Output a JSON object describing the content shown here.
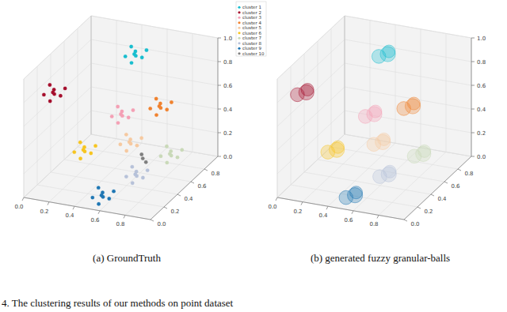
{
  "caption": "4. The clustering results of our methods on point dataset",
  "chart_data": [
    {
      "type": "scatter3d",
      "caption": "(a) GroundTruth",
      "legend": "upper right",
      "grid": true,
      "xlim": [
        0,
        1
      ],
      "ylim": [
        0,
        1
      ],
      "zlim": [
        0,
        1
      ],
      "xticks": [
        {
          "value": 0,
          "label": "0.0"
        },
        0.2,
        0.4,
        0.6,
        0.8
      ],
      "yticks": [
        {
          "value": 0,
          "label": "0.0"
        },
        0.2,
        0.4,
        0.6,
        0.8
      ],
      "zticks": [
        {
          "value": 0,
          "label": "0.0"
        },
        0.2,
        0.4,
        0.6,
        0.8,
        {
          "value": 1,
          "label": "1.0"
        }
      ],
      "series": [
        {
          "name": "cluster 1",
          "color": "#17becf",
          "x": [
            0.5,
            0.55,
            0.46,
            0.53,
            0.44,
            0.57,
            0.48,
            0.51
          ],
          "y": [
            0.7,
            0.72,
            0.73,
            0.66,
            0.68,
            0.75,
            0.76,
            0.64
          ],
          "z": [
            0.93,
            0.9,
            0.97,
            0.98,
            0.91,
            0.95,
            0.88,
            0.89
          ]
        },
        {
          "name": "cluster 2",
          "color": "#a50f2d",
          "x": [
            0.07,
            0.12,
            0.03,
            0.1,
            0.01,
            0.14,
            0.05,
            0.08
          ],
          "y": [
            0.3,
            0.32,
            0.33,
            0.26,
            0.28,
            0.35,
            0.36,
            0.24
          ],
          "z": [
            0.74,
            0.71,
            0.78,
            0.79,
            0.72,
            0.76,
            0.69,
            0.7
          ]
        },
        {
          "name": "cluster 3",
          "color": "#f4a0b5",
          "x": [
            0.5,
            0.55,
            0.46,
            0.53,
            0.44,
            0.57,
            0.48,
            0.51
          ],
          "y": [
            0.5,
            0.52,
            0.53,
            0.46,
            0.48,
            0.55,
            0.56,
            0.44
          ],
          "z": [
            0.53,
            0.5,
            0.57,
            0.58,
            0.51,
            0.55,
            0.48,
            0.49
          ]
        },
        {
          "name": "cluster 4",
          "color": "#f0822e",
          "x": [
            0.75,
            0.8,
            0.71,
            0.78,
            0.69,
            0.82,
            0.73,
            0.76
          ],
          "y": [
            0.6,
            0.62,
            0.63,
            0.56,
            0.58,
            0.65,
            0.66,
            0.54
          ],
          "z": [
            0.59,
            0.56,
            0.63,
            0.64,
            0.57,
            0.61,
            0.54,
            0.55
          ]
        },
        {
          "name": "cluster 5",
          "color": "#f6c9a0",
          "x": [
            0.62,
            0.67,
            0.58,
            0.65,
            0.56,
            0.69,
            0.6,
            0.63
          ],
          "y": [
            0.4,
            0.42,
            0.43,
            0.36,
            0.38,
            0.45,
            0.46,
            0.34
          ],
          "z": [
            0.37,
            0.34,
            0.41,
            0.42,
            0.35,
            0.39,
            0.32,
            0.33
          ]
        },
        {
          "name": "cluster 6",
          "color": "#f7c520",
          "x": [
            0.31,
            0.36,
            0.27,
            0.34,
            0.25,
            0.38,
            0.29,
            0.32
          ],
          "y": [
            0.3,
            0.32,
            0.33,
            0.26,
            0.28,
            0.35,
            0.36,
            0.24
          ],
          "z": [
            0.3,
            0.27,
            0.34,
            0.35,
            0.28,
            0.32,
            0.25,
            0.26
          ]
        },
        {
          "name": "cluster 7",
          "color": "#c9d9b8",
          "x": [
            0.78,
            0.83,
            0.74,
            0.81,
            0.72,
            0.85,
            0.76,
            0.79
          ],
          "y": [
            0.7,
            0.72,
            0.73,
            0.66,
            0.68,
            0.75,
            0.76,
            0.64
          ],
          "z": [
            0.14,
            0.11,
            0.18,
            0.19,
            0.12,
            0.16,
            0.09,
            0.1
          ]
        },
        {
          "name": "cluster 8",
          "color": "#b7c2d9",
          "x": [
            0.72,
            0.77,
            0.68,
            0.75,
            0.66,
            0.79,
            0.7,
            0.73
          ],
          "y": [
            0.3,
            0.32,
            0.33,
            0.26,
            0.28,
            0.35,
            0.36,
            0.24
          ],
          "z": [
            0.17,
            0.14,
            0.21,
            0.22,
            0.15,
            0.19,
            0.12,
            0.13
          ]
        },
        {
          "name": "cluster 9",
          "color": "#1f77b4",
          "x": [
            0.56,
            0.61,
            0.52,
            0.59,
            0.5,
            0.63,
            0.54,
            0.57
          ],
          "y": [
            0.1,
            0.12,
            0.13,
            0.06,
            0.08,
            0.15,
            0.16,
            0.04
          ],
          "z": [
            0.07,
            0.04,
            0.11,
            0.12,
            0.05,
            0.09,
            0.02,
            0.03
          ]
        },
        {
          "name": "cluster 10",
          "color": "#7f7f7f",
          "x": [
            0.7,
            0.68,
            0.73
          ],
          "y": [
            0.45,
            0.47,
            0.44
          ],
          "z": [
            0.22,
            0.24,
            0.2
          ]
        }
      ]
    },
    {
      "type": "bubble3d",
      "caption": "(b) generated fuzzy granular-balls",
      "grid": true,
      "xlim": [
        0,
        1
      ],
      "ylim": [
        0,
        1
      ],
      "zlim": [
        0,
        1
      ],
      "xticks": [
        {
          "value": 0,
          "label": "0.0"
        },
        0.2,
        0.4,
        0.6,
        0.8
      ],
      "yticks": [
        {
          "value": 0,
          "label": "0.0"
        },
        0.2,
        0.4,
        0.6,
        0.8
      ],
      "zticks": [
        {
          "value": 0,
          "label": "0.0"
        },
        0.2,
        0.4,
        0.6,
        0.8,
        {
          "value": 1,
          "label": "1.0"
        }
      ],
      "balls": {
        "x": [
          0.5,
          0.53,
          0.44,
          0.07,
          0.1,
          0.01,
          0.5,
          0.53,
          0.44,
          0.75,
          0.78,
          0.69,
          0.62,
          0.65,
          0.56,
          0.31,
          0.34,
          0.25,
          0.78,
          0.81,
          0.72,
          0.72,
          0.75,
          0.66,
          0.56,
          0.59,
          0.5
        ],
        "y": [
          0.7,
          0.66,
          0.68,
          0.3,
          0.26,
          0.28,
          0.5,
          0.46,
          0.48,
          0.6,
          0.56,
          0.58,
          0.4,
          0.36,
          0.38,
          0.3,
          0.26,
          0.28,
          0.7,
          0.66,
          0.68,
          0.3,
          0.26,
          0.28,
          0.1,
          0.06,
          0.08
        ],
        "z": [
          0.93,
          0.98,
          0.91,
          0.74,
          0.79,
          0.72,
          0.53,
          0.58,
          0.51,
          0.59,
          0.64,
          0.57,
          0.37,
          0.42,
          0.35,
          0.3,
          0.35,
          0.28,
          0.14,
          0.19,
          0.12,
          0.17,
          0.22,
          0.15,
          0.07,
          0.12,
          0.05
        ],
        "radius": [
          0.06,
          0.05,
          0.055,
          0.06,
          0.05,
          0.055,
          0.06,
          0.05,
          0.055,
          0.06,
          0.05,
          0.055,
          0.06,
          0.05,
          0.055,
          0.06,
          0.05,
          0.055,
          0.06,
          0.05,
          0.055,
          0.06,
          0.05,
          0.055,
          0.06,
          0.05,
          0.055
        ],
        "colors": [
          "#17becf",
          "#17becf",
          "#17becf",
          "#a50f2d",
          "#a50f2d",
          "#a50f2d",
          "#f4a0b5",
          "#f4a0b5",
          "#f4a0b5",
          "#f0822e",
          "#f0822e",
          "#f0822e",
          "#f6c9a0",
          "#f6c9a0",
          "#f6c9a0",
          "#f7c520",
          "#f7c520",
          "#f7c520",
          "#c9d9b8",
          "#c9d9b8",
          "#c9d9b8",
          "#b7c2d9",
          "#b7c2d9",
          "#b7c2d9",
          "#1f77b4",
          "#1f77b4",
          "#1f77b4"
        ]
      }
    }
  ]
}
